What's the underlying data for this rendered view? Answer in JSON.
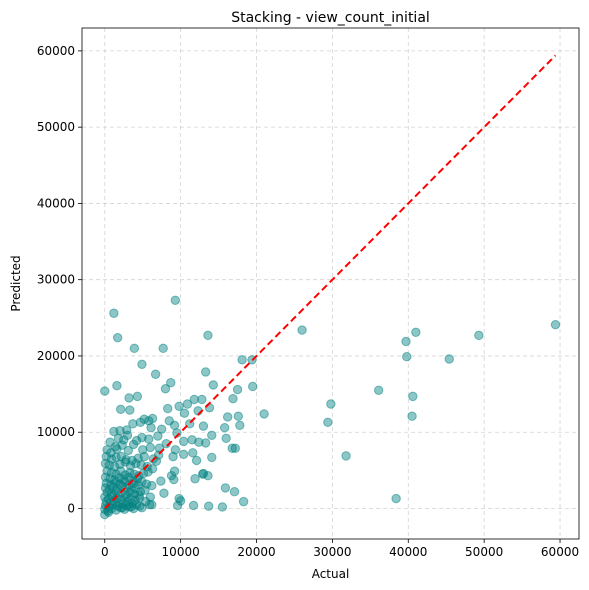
{
  "chart_data": {
    "type": "scatter",
    "title": "Stacking - view_count_initial",
    "xlabel": "Actual",
    "ylabel": "Predicted",
    "xlim": [
      -3000,
      62500
    ],
    "ylim": [
      -4000,
      63000
    ],
    "xticks": [
      0,
      10000,
      20000,
      30000,
      40000,
      50000,
      60000
    ],
    "yticks": [
      0,
      10000,
      20000,
      30000,
      40000,
      50000,
      60000
    ],
    "grid": true,
    "colors": {
      "points": "#008080",
      "reference_line": "#ff0000"
    },
    "reference_line": {
      "x": [
        0,
        59400
      ],
      "y": [
        0,
        59400
      ]
    },
    "series": [
      {
        "points": [
          [
            1200,
            25600
          ],
          [
            9300,
            27300
          ],
          [
            1700,
            22400
          ],
          [
            13600,
            22700
          ],
          [
            26000,
            23400
          ],
          [
            41000,
            23100
          ],
          [
            39700,
            21900
          ],
          [
            49300,
            22700
          ],
          [
            59400,
            24100
          ],
          [
            3900,
            21000
          ],
          [
            7700,
            21000
          ],
          [
            4900,
            18900
          ],
          [
            13300,
            17900
          ],
          [
            18100,
            19500
          ],
          [
            19400,
            19500
          ],
          [
            39800,
            19900
          ],
          [
            45400,
            19600
          ],
          [
            1600,
            16100
          ],
          [
            6700,
            17600
          ],
          [
            8700,
            16500
          ],
          [
            8000,
            15700
          ],
          [
            14300,
            16200
          ],
          [
            17500,
            15600
          ],
          [
            19500,
            16000
          ],
          [
            0,
            15400
          ],
          [
            36100,
            15500
          ],
          [
            40600,
            14700
          ],
          [
            3200,
            14500
          ],
          [
            4300,
            14700
          ],
          [
            9800,
            13400
          ],
          [
            10900,
            13700
          ],
          [
            11800,
            14300
          ],
          [
            12800,
            14300
          ],
          [
            16900,
            14400
          ],
          [
            21000,
            12400
          ],
          [
            29800,
            13700
          ],
          [
            2100,
            13000
          ],
          [
            3300,
            12900
          ],
          [
            5200,
            11700
          ],
          [
            5800,
            11500
          ],
          [
            6300,
            11800
          ],
          [
            8300,
            13100
          ],
          [
            10500,
            12500
          ],
          [
            12300,
            12800
          ],
          [
            13800,
            13200
          ],
          [
            16200,
            12000
          ],
          [
            17600,
            12100
          ],
          [
            29400,
            11300
          ],
          [
            40500,
            12100
          ],
          [
            1200,
            10100
          ],
          [
            2000,
            10200
          ],
          [
            2900,
            10300
          ],
          [
            3700,
            11100
          ],
          [
            4700,
            11300
          ],
          [
            6100,
            10600
          ],
          [
            7500,
            10400
          ],
          [
            8500,
            11500
          ],
          [
            9200,
            10900
          ],
          [
            11200,
            11100
          ],
          [
            13000,
            10800
          ],
          [
            15800,
            10600
          ],
          [
            17800,
            10900
          ],
          [
            700,
            8700
          ],
          [
            1400,
            8100
          ],
          [
            1800,
            9200
          ],
          [
            2500,
            9000
          ],
          [
            3000,
            9600
          ],
          [
            4200,
            8900
          ],
          [
            4900,
            9300
          ],
          [
            5800,
            9100
          ],
          [
            7000,
            9500
          ],
          [
            9500,
            9900
          ],
          [
            10400,
            8800
          ],
          [
            11500,
            9000
          ],
          [
            12400,
            8700
          ],
          [
            13300,
            8600
          ],
          [
            14100,
            9600
          ],
          [
            16000,
            9200
          ],
          [
            300,
            7700
          ],
          [
            800,
            7300
          ],
          [
            1600,
            7800
          ],
          [
            2300,
            8300
          ],
          [
            3100,
            7600
          ],
          [
            3800,
            8400
          ],
          [
            5000,
            7700
          ],
          [
            6000,
            8000
          ],
          [
            7200,
            7900
          ],
          [
            8100,
            8500
          ],
          [
            9300,
            7700
          ],
          [
            11600,
            7300
          ],
          [
            16800,
            7900
          ],
          [
            17200,
            7900
          ],
          [
            31800,
            6900
          ],
          [
            200,
            6800
          ],
          [
            900,
            6500
          ],
          [
            1500,
            6700
          ],
          [
            2200,
            6800
          ],
          [
            2800,
            6400
          ],
          [
            3600,
            6300
          ],
          [
            4400,
            6600
          ],
          [
            5200,
            6800
          ],
          [
            6400,
            6500
          ],
          [
            7100,
            7000
          ],
          [
            9000,
            6800
          ],
          [
            10400,
            7100
          ],
          [
            12100,
            6300
          ],
          [
            14100,
            6700
          ],
          [
            100,
            5900
          ],
          [
            600,
            5700
          ],
          [
            1300,
            5500
          ],
          [
            2000,
            5800
          ],
          [
            2700,
            6100
          ],
          [
            3400,
            5600
          ],
          [
            4100,
            5900
          ],
          [
            4800,
            5700
          ],
          [
            5600,
            5500
          ],
          [
            6300,
            5200
          ],
          [
            6800,
            6200
          ],
          [
            9200,
            4900
          ],
          [
            13000,
            4600
          ],
          [
            13600,
            4300
          ],
          [
            300,
            4900
          ],
          [
            900,
            4700
          ],
          [
            1500,
            4500
          ],
          [
            2100,
            4900
          ],
          [
            2700,
            4400
          ],
          [
            3300,
            4700
          ],
          [
            3900,
            4500
          ],
          [
            4500,
            4300
          ],
          [
            5100,
            4600
          ],
          [
            5700,
            4800
          ],
          [
            8800,
            4300
          ],
          [
            12900,
            4500
          ],
          [
            100,
            4100
          ],
          [
            700,
            3900
          ],
          [
            1300,
            3700
          ],
          [
            1900,
            4000
          ],
          [
            2500,
            3800
          ],
          [
            3100,
            4100
          ],
          [
            3700,
            3600
          ],
          [
            4300,
            3900
          ],
          [
            4900,
            3500
          ],
          [
            5500,
            3200
          ],
          [
            7400,
            3600
          ],
          [
            9100,
            3800
          ],
          [
            11900,
            3900
          ],
          [
            200,
            3300
          ],
          [
            800,
            3100
          ],
          [
            1400,
            3400
          ],
          [
            2000,
            3200
          ],
          [
            2600,
            3500
          ],
          [
            3200,
            3000
          ],
          [
            3800,
            3300
          ],
          [
            4400,
            3100
          ],
          [
            6200,
            3000
          ],
          [
            100,
            2700
          ],
          [
            600,
            2500
          ],
          [
            1100,
            2800
          ],
          [
            1700,
            2600
          ],
          [
            2300,
            2900
          ],
          [
            2900,
            2700
          ],
          [
            3500,
            2400
          ],
          [
            4100,
            2600
          ],
          [
            4700,
            2200
          ],
          [
            5300,
            2400
          ],
          [
            15900,
            2700
          ],
          [
            17100,
            2200
          ],
          [
            300,
            2100
          ],
          [
            900,
            1900
          ],
          [
            1500,
            2200
          ],
          [
            2100,
            2000
          ],
          [
            2700,
            1800
          ],
          [
            3300,
            2100
          ],
          [
            3900,
            1900
          ],
          [
            4500,
            1700
          ],
          [
            6000,
            1500
          ],
          [
            7800,
            2000
          ],
          [
            0,
            1500
          ],
          [
            500,
            1300
          ],
          [
            1000,
            1600
          ],
          [
            1600,
            1400
          ],
          [
            2200,
            1200
          ],
          [
            2800,
            1500
          ],
          [
            3400,
            1300
          ],
          [
            4000,
            1100
          ],
          [
            4600,
            1400
          ],
          [
            5400,
            900
          ],
          [
            9800,
            1300
          ],
          [
            10000,
            1000
          ],
          [
            38400,
            1300
          ],
          [
            18300,
            900
          ],
          [
            200,
            900
          ],
          [
            700,
            700
          ],
          [
            1200,
            1000
          ],
          [
            1800,
            800
          ],
          [
            2400,
            600
          ],
          [
            3000,
            900
          ],
          [
            3600,
            700
          ],
          [
            4200,
            500
          ],
          [
            6200,
            500
          ],
          [
            100,
            400
          ],
          [
            600,
            200
          ],
          [
            1100,
            500
          ],
          [
            1700,
            300
          ],
          [
            2300,
            100
          ],
          [
            2900,
            400
          ],
          [
            3500,
            200
          ],
          [
            4600,
            300
          ],
          [
            5900,
            500
          ],
          [
            9600,
            400
          ],
          [
            11700,
            400
          ],
          [
            13700,
            300
          ],
          [
            15500,
            200
          ],
          [
            0,
            -100
          ],
          [
            400,
            -300
          ],
          [
            900,
            0
          ],
          [
            1500,
            -200
          ],
          [
            2100,
            100
          ],
          [
            2600,
            -100
          ],
          [
            3200,
            200
          ],
          [
            3800,
            0
          ],
          [
            4900,
            100
          ],
          [
            0,
            -800
          ],
          [
            500,
            -500
          ]
        ]
      }
    ]
  }
}
